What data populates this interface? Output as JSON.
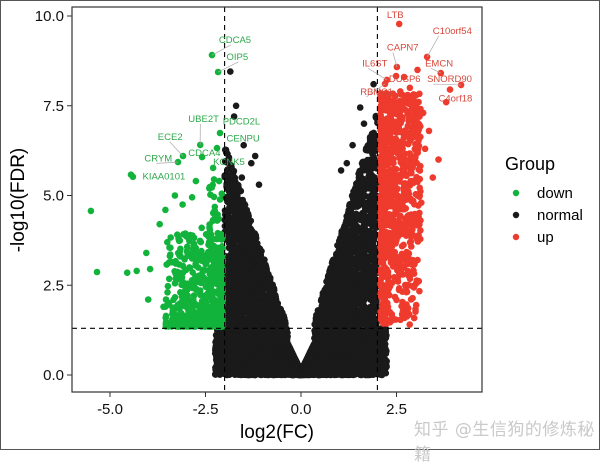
{
  "chart_data": {
    "type": "scatter",
    "subtype": "volcano",
    "title": "",
    "xlabel": "log2(FC)",
    "ylabel": "-log10(FDR)",
    "xlim": [
      -6.0,
      4.75
    ],
    "ylim": [
      -0.45,
      10.25
    ],
    "x_ticks": [
      -5.0,
      -2.5,
      0.0,
      2.5
    ],
    "x_tick_labels": [
      "-5.0",
      "-2.5",
      "0.0",
      "2.5"
    ],
    "y_ticks": [
      0.0,
      2.5,
      5.0,
      7.5,
      10.0
    ],
    "y_tick_labels": [
      "0.0",
      "2.5",
      "5.0",
      "7.5",
      "10.0"
    ],
    "grid": false,
    "thresholds": {
      "log2fc_cutoff": [
        -2,
        2
      ],
      "fdr_cutoff_neglog10": 1.3
    },
    "legend": {
      "title": "Group",
      "position": "right",
      "entries": [
        {
          "label": "down",
          "color": "#12b33b"
        },
        {
          "label": "normal",
          "color": "#1a1a1a"
        },
        {
          "label": "up",
          "color": "#ee3b2d"
        }
      ]
    },
    "series": [
      {
        "name": "normal",
        "color": "#1a1a1a",
        "approx_count": 9000,
        "description": "dense V-shaped cloud between log2FC -2 and 2, y 0 to ~8"
      },
      {
        "name": "down",
        "color": "#12b33b",
        "approx_count": 450,
        "description": "log2FC < -2 and -log10(FDR) > 1.3; dense band y 1.3-3.5, sparse up to ~9"
      },
      {
        "name": "up",
        "color": "#ee3b2d",
        "approx_count": 700,
        "description": "log2FC > 2 and -log10(FDR) > 1.3; dense band x 2-3, y 1.3-8"
      }
    ],
    "labeled_points": [
      {
        "gene": "CDCA5",
        "x": -2.33,
        "y": 8.91,
        "group": "down",
        "lx": -2.15,
        "ly": 9.25
      },
      {
        "gene": "OIP5",
        "x": -2.17,
        "y": 8.44,
        "group": "down",
        "lx": -1.95,
        "ly": 8.78
      },
      {
        "gene": "UBE2T",
        "x": -2.64,
        "y": 6.41,
        "group": "down",
        "lx": -2.95,
        "ly": 7.05
      },
      {
        "gene": "PDCD2L",
        "x": -2.12,
        "y": 6.74,
        "group": "down",
        "lx": -2.05,
        "ly": 6.98
      },
      {
        "gene": "ECE2",
        "x": -3.09,
        "y": 6.1,
        "group": "down",
        "lx": -3.75,
        "ly": 6.55
      },
      {
        "gene": "CENPU",
        "x": -2.2,
        "y": 6.32,
        "group": "down",
        "lx": -1.95,
        "ly": 6.5
      },
      {
        "gene": "CDCA4",
        "x": -2.59,
        "y": 6.07,
        "group": "down",
        "lx": -2.95,
        "ly": 6.1
      },
      {
        "gene": "CRYM",
        "x": -3.22,
        "y": 5.93,
        "group": "down",
        "lx": -4.1,
        "ly": 5.95
      },
      {
        "gene": "KCNK5",
        "x": -2.3,
        "y": 5.77,
        "group": "down",
        "lx": -2.3,
        "ly": 5.85
      },
      {
        "gene": "KIAA0101",
        "x": -4.4,
        "y": 5.52,
        "group": "down",
        "lx": -4.15,
        "ly": 5.45
      },
      {
        "gene": "LTB",
        "x": 2.57,
        "y": 9.78,
        "group": "up",
        "lx": 2.25,
        "ly": 9.95
      },
      {
        "gene": "C10orf54",
        "x": 3.3,
        "y": 8.86,
        "group": "up",
        "lx": 3.45,
        "ly": 9.5
      },
      {
        "gene": "CAPN7",
        "x": 2.51,
        "y": 8.58,
        "group": "up",
        "lx": 2.25,
        "ly": 9.04
      },
      {
        "gene": "IL6ST",
        "x": 2.25,
        "y": 8.22,
        "group": "up",
        "lx": 1.6,
        "ly": 8.6
      },
      {
        "gene": "EMCN",
        "x": 3.66,
        "y": 8.41,
        "group": "up",
        "lx": 3.25,
        "ly": 8.6
      },
      {
        "gene": "DUSP6",
        "x": 2.49,
        "y": 8.33,
        "group": "up",
        "lx": 2.3,
        "ly": 8.16
      },
      {
        "gene": "SNORD90",
        "x": 4.19,
        "y": 8.08,
        "group": "up",
        "lx": 3.3,
        "ly": 8.16
      },
      {
        "gene": "RBMS1",
        "x": 2.2,
        "y": 8.11,
        "group": "up",
        "lx": 1.55,
        "ly": 7.8
      },
      {
        "gene": "C4orf18",
        "x": 3.8,
        "y": 7.6,
        "group": "up",
        "lx": 3.6,
        "ly": 7.62
      }
    ],
    "outlier_points": {
      "down": [
        [
          -5.5,
          4.57
        ],
        [
          -5.34,
          2.87
        ],
        [
          -4.45,
          5.58
        ],
        [
          -4.3,
          2.9
        ],
        [
          -4.55,
          2.85
        ],
        [
          -3.95,
          2.95
        ],
        [
          -4.05,
          3.4
        ],
        [
          -3.7,
          4.2
        ],
        [
          -3.55,
          4.6
        ],
        [
          -3.3,
          5.0
        ],
        [
          -3.1,
          4.75
        ],
        [
          -2.75,
          5.4
        ],
        [
          -2.85,
          4.95
        ],
        [
          -2.4,
          5.2
        ],
        [
          -3.5,
          3.7
        ],
        [
          -2.9,
          3.9
        ],
        [
          -2.6,
          4.1
        ],
        [
          -4.0,
          2.1
        ],
        [
          -3.6,
          1.9
        ],
        [
          -3.1,
          2.6
        ]
      ],
      "up": [
        [
          3.05,
          8.5
        ],
        [
          2.85,
          8.0
        ],
        [
          3.2,
          7.3
        ],
        [
          3.35,
          6.8
        ],
        [
          2.95,
          7.6
        ],
        [
          3.6,
          6.0
        ],
        [
          3.9,
          7.95
        ],
        [
          3.45,
          5.5
        ],
        [
          3.15,
          4.8
        ],
        [
          3.05,
          3.2
        ],
        [
          2.75,
          4.1
        ],
        [
          2.9,
          5.9
        ],
        [
          3.25,
          6.3
        ],
        [
          2.6,
          7.9
        ],
        [
          2.7,
          8.3
        ]
      ],
      "normal": [
        [
          -1.85,
          8.45
        ],
        [
          -1.7,
          7.5
        ],
        [
          -1.75,
          7.2
        ],
        [
          -1.5,
          6.4
        ],
        [
          -1.3,
          5.9
        ],
        [
          -1.2,
          6.1
        ],
        [
          -1.55,
          5.5
        ],
        [
          -1.1,
          5.3
        ],
        [
          1.9,
          8.1
        ],
        [
          1.55,
          7.45
        ],
        [
          1.65,
          7.0
        ],
        [
          1.35,
          6.4
        ],
        [
          1.2,
          5.9
        ],
        [
          1.05,
          5.7
        ]
      ]
    }
  },
  "axes": {
    "x_title": "log2(FC)",
    "y_title": "-log10(FDR)",
    "x_tick_labels": [
      "-5.0",
      "-2.5",
      "0.0",
      "2.5"
    ],
    "y_tick_labels": [
      "0.0",
      "2.5",
      "5.0",
      "7.5",
      "10.0"
    ]
  },
  "legend": {
    "title": "Group",
    "items": [
      {
        "label": "down",
        "color": "#12b33b"
      },
      {
        "label": "normal",
        "color": "#1a1a1a"
      },
      {
        "label": "up",
        "color": "#ee3b2d"
      }
    ]
  },
  "colors": {
    "down": "#12b33b",
    "normal": "#1a1a1a",
    "up": "#ee3b2d",
    "down_label": "#2ea84b",
    "up_label": "#d8473b"
  },
  "watermark": "知乎 @生信狗的修炼秘籍"
}
